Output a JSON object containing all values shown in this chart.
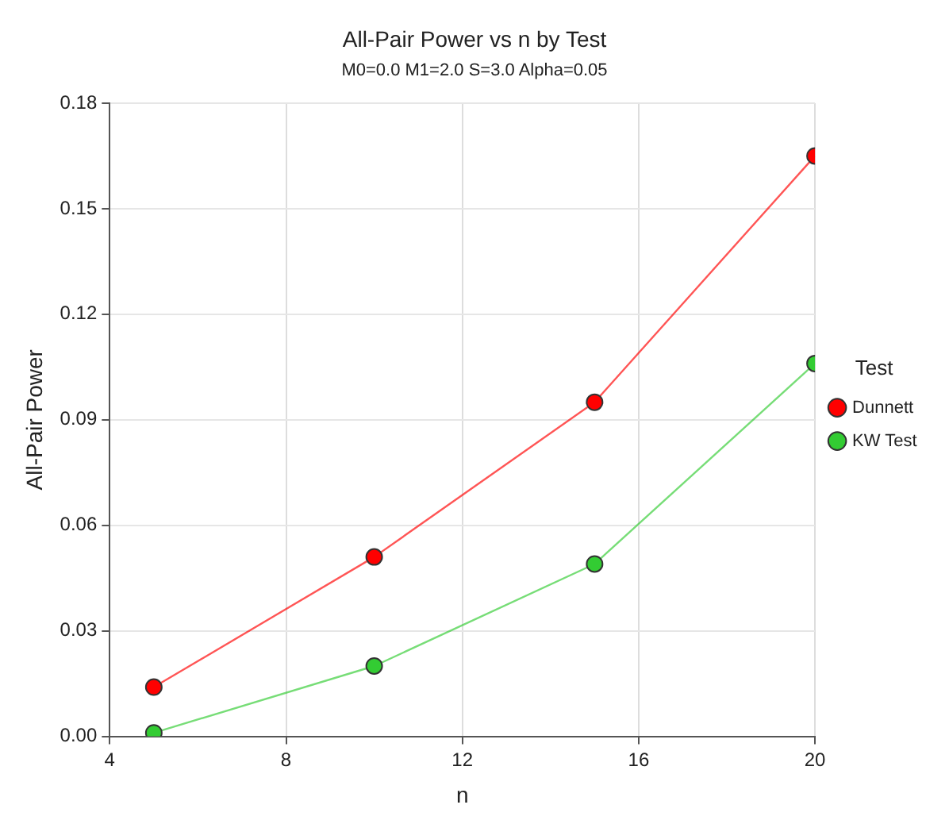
{
  "chart_data": {
    "type": "line",
    "title": "All-Pair Power vs n by Test",
    "subtitle": "M0=0.0 M1=2.0 S=3.0 Alpha=0.05",
    "xlabel": "n",
    "ylabel": "All-Pair Power",
    "legend_title": "Test",
    "x": [
      5,
      10,
      15,
      20
    ],
    "series": [
      {
        "name": "Dunnett",
        "color": "#ff0000",
        "values": [
          0.014,
          0.051,
          0.095,
          0.165
        ]
      },
      {
        "name": "KW Test",
        "color": "#33cc33",
        "values": [
          0.001,
          0.02,
          0.049,
          0.106
        ]
      }
    ],
    "xlim": [
      4,
      20
    ],
    "xticks": [
      4,
      8,
      12,
      16,
      20
    ],
    "ylim": [
      0,
      0.18
    ],
    "yticks": [
      {
        "value": 0,
        "label": "0.00"
      },
      {
        "value": 0.03,
        "label": "0.03"
      },
      {
        "value": 0.06,
        "label": "0.06"
      },
      {
        "value": 0.09,
        "label": "0.09"
      },
      {
        "value": 0.12,
        "label": "0.12"
      },
      {
        "value": 0.15,
        "label": "0.15"
      },
      {
        "value": 0.18,
        "label": "0.18"
      }
    ],
    "grid": true,
    "legend": "right",
    "marker": "circle",
    "line_style": "solid"
  }
}
